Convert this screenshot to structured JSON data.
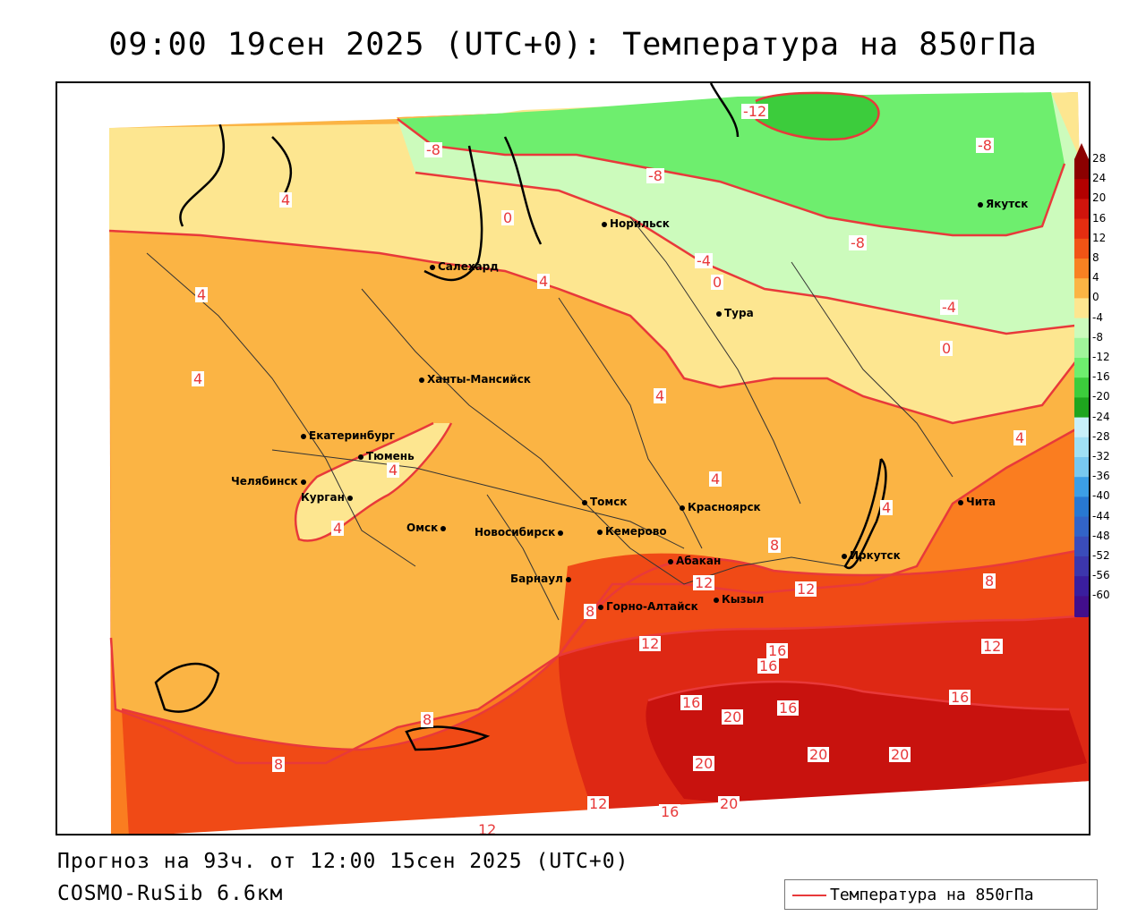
{
  "title": "09:00 19сен 2025 (UTC+0): Температура на 850гПа",
  "footer": {
    "forecast": "Прогноз на 93ч. от 12:00 15сен 2025 (UTC+0)",
    "model": "COSMO-RuSib 6.6км"
  },
  "legend": {
    "label": "Температура на 850гПа",
    "line_color": "#e8393a"
  },
  "colors": {
    "band_20": "#c8120e",
    "band_16": "#de2814",
    "band_12": "#f04a16",
    "band_8": "#fa7d20",
    "band_4": "#fbb444",
    "band_0": "#fde690",
    "band_m4": "#ccfbbc",
    "band_m8": "#6eee6e",
    "band_m12": "#3ccc3c",
    "isoline": "#e8393a"
  },
  "scale": {
    "ticks": [
      "28",
      "24",
      "20",
      "16",
      "12",
      "8",
      "4",
      "0",
      "-4",
      "-8",
      "-12",
      "-16",
      "-20",
      "-24",
      "-28",
      "-32",
      "-36",
      "-40",
      "-44",
      "-48",
      "-52",
      "-56",
      "-60"
    ],
    "colors": [
      "#8b0000",
      "#b30000",
      "#d0140c",
      "#e42d10",
      "#f15415",
      "#f88122",
      "#fbb444",
      "#fde690",
      "#ccfbbc",
      "#a0f59a",
      "#6eee6e",
      "#3ccc3c",
      "#1ea51e",
      "#c8f0fa",
      "#a0e0f5",
      "#78c8f0",
      "#3c9ee6",
      "#2878d2",
      "#3264c8",
      "#3a4cba",
      "#3c36ac",
      "#3a1e9e",
      "#420e8c"
    ]
  },
  "cities": [
    {
      "name": "Норильск"
    },
    {
      "name": "Якутск"
    },
    {
      "name": "Салехард"
    },
    {
      "name": "Тура"
    },
    {
      "name": "Ханты-Мансийск"
    },
    {
      "name": "Екатеринбург"
    },
    {
      "name": "Тюмень"
    },
    {
      "name": "Челябинск"
    },
    {
      "name": "Курган"
    },
    {
      "name": "Омск"
    },
    {
      "name": "Новосибирск"
    },
    {
      "name": "Томск"
    },
    {
      "name": "Кемерово"
    },
    {
      "name": "Красноярск"
    },
    {
      "name": "Барнаул"
    },
    {
      "name": "Абакан"
    },
    {
      "name": "Горно-Алтайск"
    },
    {
      "name": "Кызыл"
    },
    {
      "name": "Иркутск"
    },
    {
      "name": "Чита"
    }
  ],
  "isolabels": [
    "-12",
    "-8",
    "-8",
    "-8",
    "-8",
    "4",
    "4",
    "4",
    "4",
    "4",
    "4",
    "4",
    "4",
    "0",
    "-4",
    "0",
    "-4",
    "0",
    "4",
    "4",
    "8",
    "8",
    "8",
    "8",
    "12",
    "12",
    "12",
    "12",
    "16",
    "16",
    "16",
    "16",
    "16",
    "16",
    "20",
    "20",
    "20",
    "20",
    "20",
    "12",
    "12",
    "8"
  ]
}
